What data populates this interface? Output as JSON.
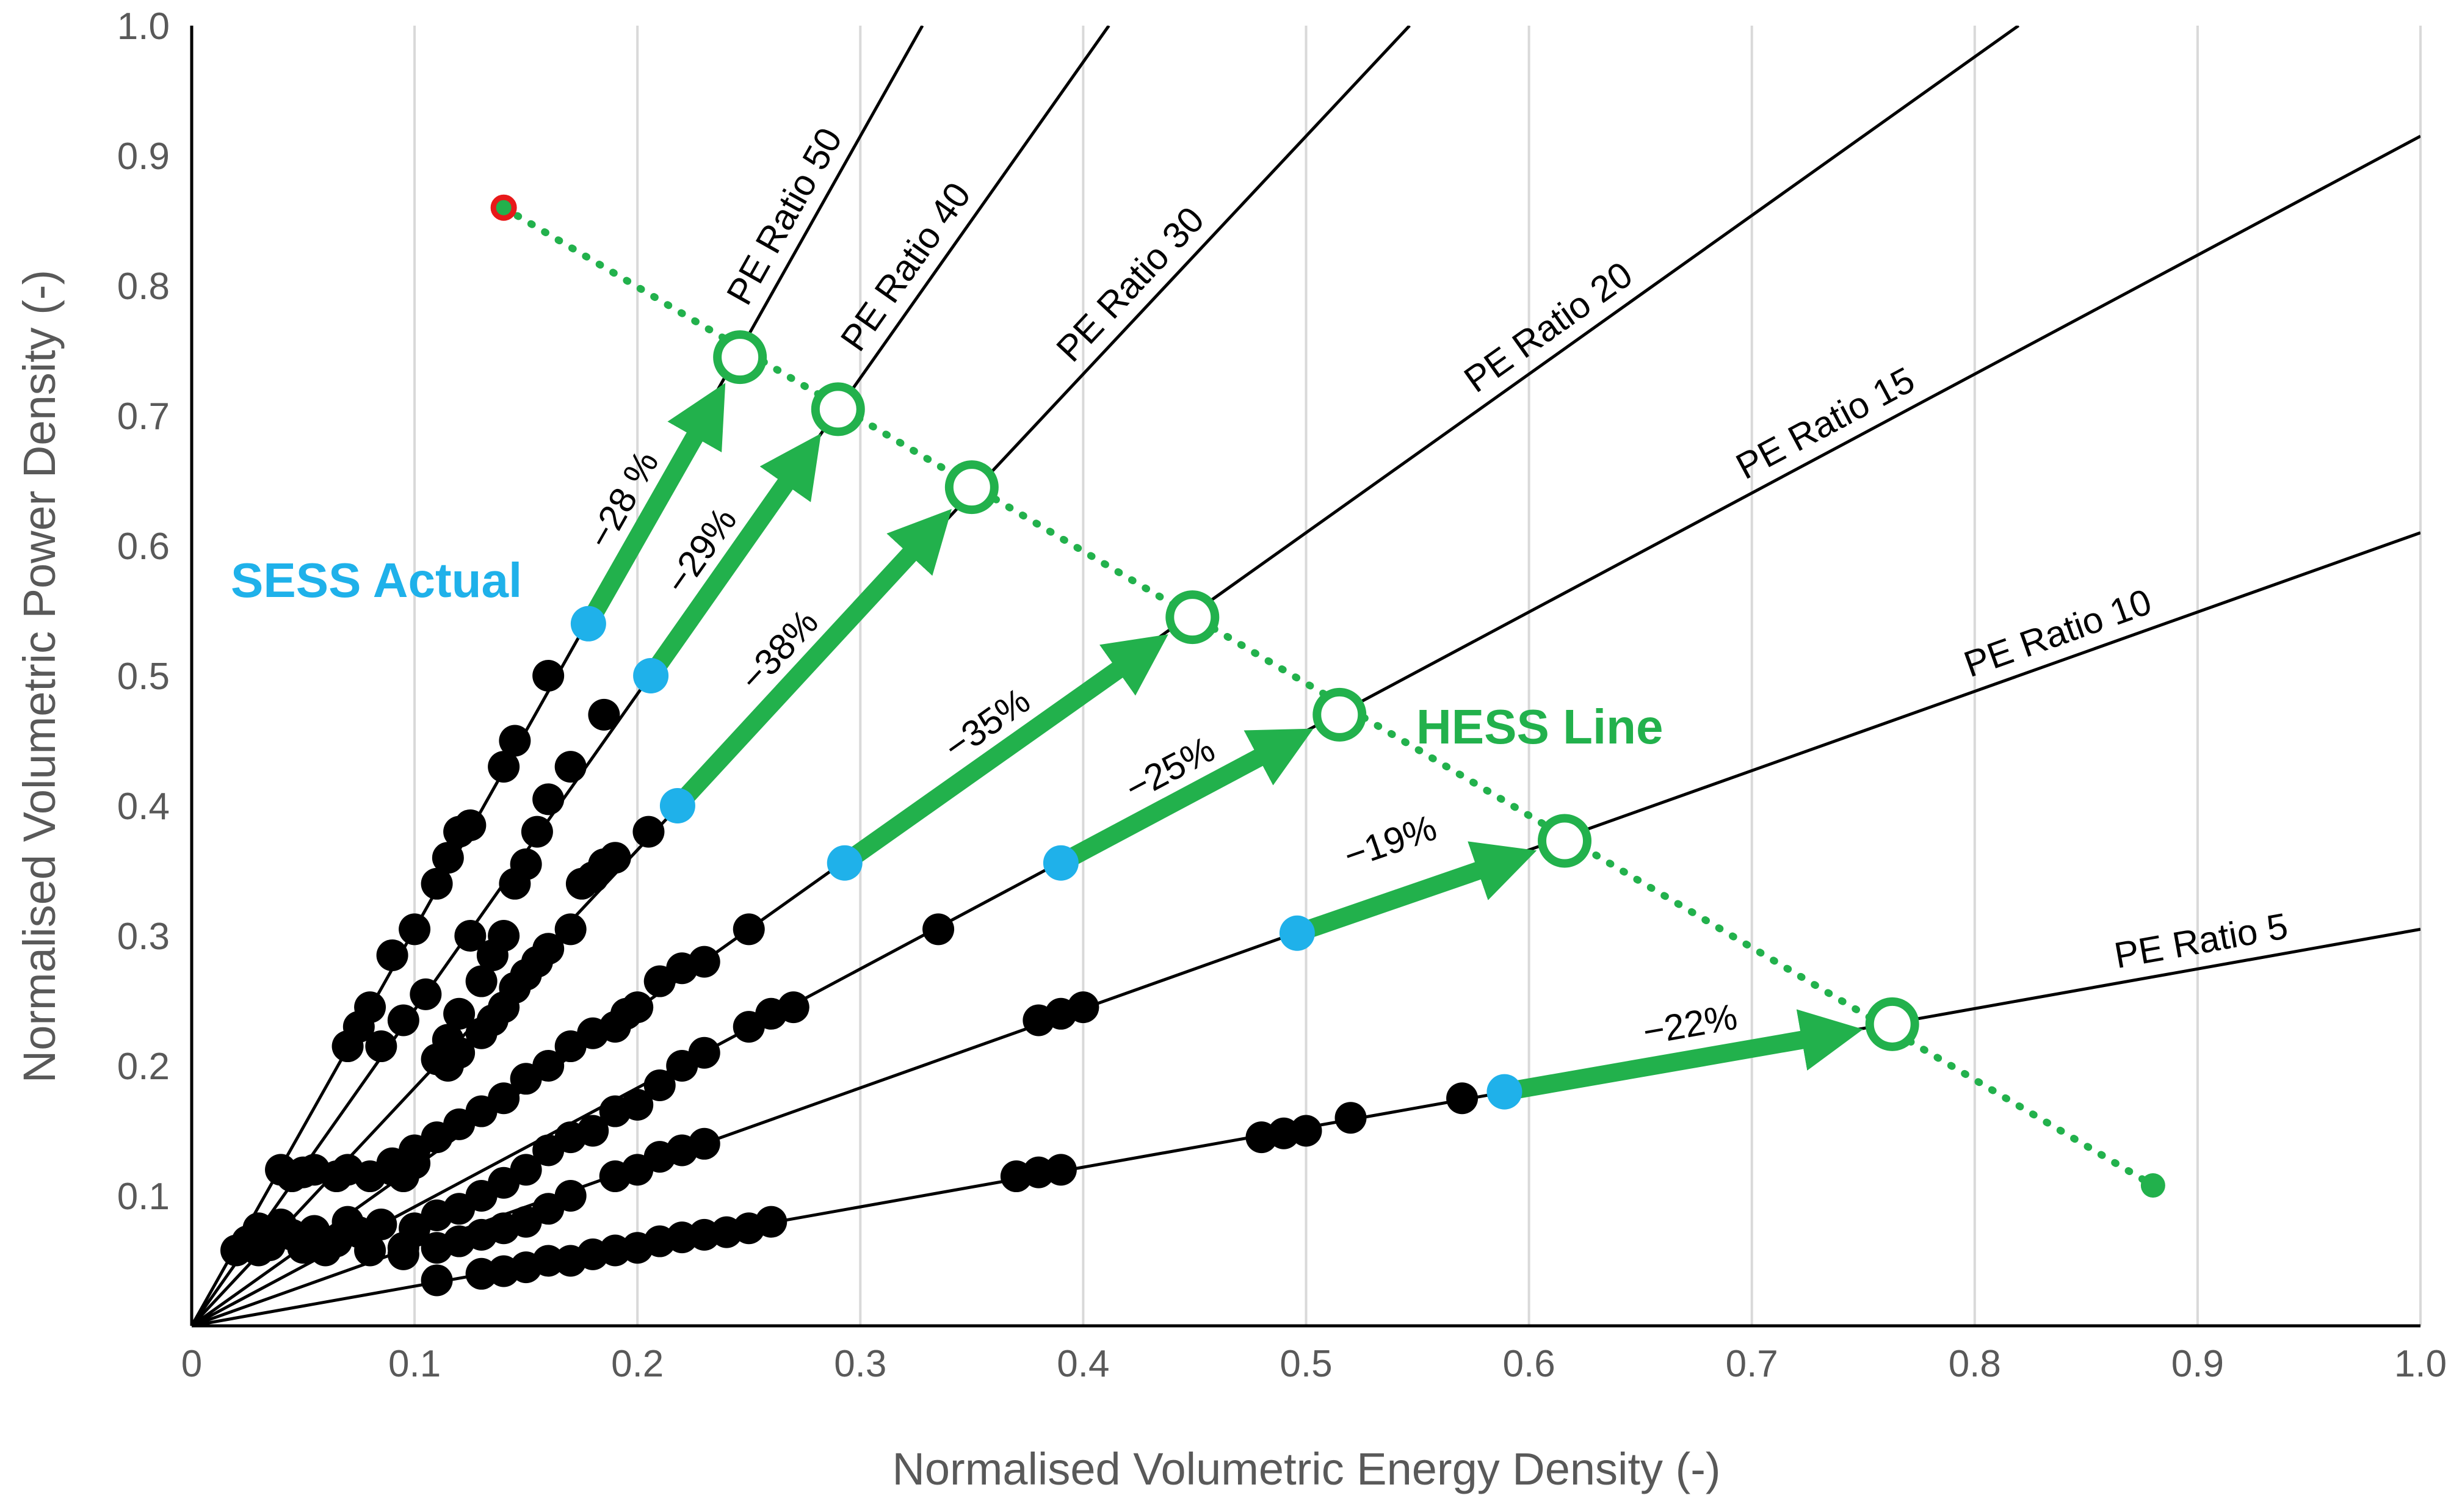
{
  "chart_data": {
    "type": "scatter",
    "xlabel": "Normalised Volumetric Energy Density (-)",
    "ylabel": "Normalised Volumetric Power Density (-)",
    "xlim": [
      0,
      1.0
    ],
    "ylim": [
      0,
      1.0
    ],
    "grid": "vertical",
    "x_ticks": [
      "0",
      "0.1",
      "0.2",
      "0.3",
      "0.4",
      "0.5",
      "0.6",
      "0.7",
      "0.8",
      "0.9",
      "1.0"
    ],
    "y_ticks": [
      "0.1",
      "0.2",
      "0.3",
      "0.4",
      "0.5",
      "0.6",
      "0.7",
      "0.8",
      "0.9",
      "1.0"
    ],
    "pe_ratio_lines": [
      {
        "label": "PE Ratio 50",
        "slope": 3.05,
        "x_end": 0.328
      },
      {
        "label": "PE Ratio 40",
        "slope": 2.43,
        "x_end": 0.412
      },
      {
        "label": "PE Ratio 30",
        "slope": 1.83,
        "x_end": 0.547
      },
      {
        "label": "PE Ratio 20",
        "slope": 1.22,
        "x_end": 0.82
      },
      {
        "label": "PE Ratio 15",
        "slope": 0.915,
        "x_end": 1.0
      },
      {
        "label": "PE Ratio 10",
        "slope": 0.61,
        "x_end": 1.0
      },
      {
        "label": "PE Ratio 5",
        "slope": 0.305,
        "x_end": 1.0
      }
    ],
    "sess_points_black": [
      [
        0.02,
        0.058
      ],
      [
        0.025,
        0.065
      ],
      [
        0.03,
        0.075
      ],
      [
        0.035,
        0.062
      ],
      [
        0.04,
        0.078
      ],
      [
        0.045,
        0.07
      ],
      [
        0.05,
        0.06
      ],
      [
        0.055,
        0.073
      ],
      [
        0.03,
        0.058
      ],
      [
        0.06,
        0.058
      ],
      [
        0.065,
        0.065
      ],
      [
        0.07,
        0.08
      ],
      [
        0.075,
        0.072
      ],
      [
        0.08,
        0.058
      ],
      [
        0.085,
        0.078
      ],
      [
        0.095,
        0.06
      ],
      [
        0.04,
        0.12
      ],
      [
        0.045,
        0.115
      ],
      [
        0.05,
        0.118
      ],
      [
        0.055,
        0.12
      ],
      [
        0.065,
        0.115
      ],
      [
        0.07,
        0.12
      ],
      [
        0.09,
        0.12
      ],
      [
        0.095,
        0.115
      ],
      [
        0.1,
        0.125
      ],
      [
        0.07,
        0.215
      ],
      [
        0.075,
        0.23
      ],
      [
        0.08,
        0.245
      ],
      [
        0.09,
        0.285
      ],
      [
        0.1,
        0.305
      ],
      [
        0.11,
        0.34
      ],
      [
        0.115,
        0.36
      ],
      [
        0.12,
        0.38
      ],
      [
        0.125,
        0.385
      ],
      [
        0.14,
        0.43
      ],
      [
        0.145,
        0.45
      ],
      [
        0.16,
        0.5
      ],
      [
        0.11,
        0.205
      ],
      [
        0.115,
        0.22
      ],
      [
        0.12,
        0.24
      ],
      [
        0.13,
        0.265
      ],
      [
        0.135,
        0.285
      ],
      [
        0.14,
        0.3
      ],
      [
        0.145,
        0.34
      ],
      [
        0.15,
        0.355
      ],
      [
        0.155,
        0.38
      ],
      [
        0.16,
        0.405
      ],
      [
        0.17,
        0.43
      ],
      [
        0.185,
        0.47
      ],
      [
        0.085,
        0.215
      ],
      [
        0.095,
        0.235
      ],
      [
        0.105,
        0.255
      ],
      [
        0.125,
        0.3
      ],
      [
        0.115,
        0.2
      ],
      [
        0.12,
        0.21
      ],
      [
        0.13,
        0.225
      ],
      [
        0.135,
        0.235
      ],
      [
        0.14,
        0.245
      ],
      [
        0.145,
        0.26
      ],
      [
        0.15,
        0.27
      ],
      [
        0.155,
        0.28
      ],
      [
        0.16,
        0.29
      ],
      [
        0.17,
        0.305
      ],
      [
        0.175,
        0.34
      ],
      [
        0.18,
        0.345
      ],
      [
        0.185,
        0.355
      ],
      [
        0.19,
        0.36
      ],
      [
        0.205,
        0.38
      ],
      [
        0.08,
        0.115
      ],
      [
        0.09,
        0.125
      ],
      [
        0.1,
        0.135
      ],
      [
        0.11,
        0.145
      ],
      [
        0.12,
        0.155
      ],
      [
        0.13,
        0.165
      ],
      [
        0.14,
        0.175
      ],
      [
        0.15,
        0.19
      ],
      [
        0.16,
        0.2
      ],
      [
        0.17,
        0.215
      ],
      [
        0.18,
        0.225
      ],
      [
        0.19,
        0.23
      ],
      [
        0.195,
        0.24
      ],
      [
        0.2,
        0.245
      ],
      [
        0.21,
        0.265
      ],
      [
        0.22,
        0.275
      ],
      [
        0.23,
        0.28
      ],
      [
        0.25,
        0.305
      ],
      [
        0.1,
        0.075
      ],
      [
        0.11,
        0.085
      ],
      [
        0.12,
        0.09
      ],
      [
        0.13,
        0.1
      ],
      [
        0.14,
        0.11
      ],
      [
        0.15,
        0.12
      ],
      [
        0.16,
        0.135
      ],
      [
        0.17,
        0.145
      ],
      [
        0.18,
        0.15
      ],
      [
        0.19,
        0.165
      ],
      [
        0.2,
        0.17
      ],
      [
        0.21,
        0.185
      ],
      [
        0.22,
        0.2
      ],
      [
        0.23,
        0.21
      ],
      [
        0.25,
        0.23
      ],
      [
        0.26,
        0.24
      ],
      [
        0.27,
        0.245
      ],
      [
        0.335,
        0.305
      ],
      [
        0.095,
        0.055
      ],
      [
        0.11,
        0.06
      ],
      [
        0.12,
        0.065
      ],
      [
        0.13,
        0.07
      ],
      [
        0.14,
        0.075
      ],
      [
        0.15,
        0.08
      ],
      [
        0.16,
        0.09
      ],
      [
        0.17,
        0.1
      ],
      [
        0.19,
        0.115
      ],
      [
        0.2,
        0.12
      ],
      [
        0.21,
        0.13
      ],
      [
        0.22,
        0.135
      ],
      [
        0.23,
        0.14
      ],
      [
        0.38,
        0.235
      ],
      [
        0.39,
        0.24
      ],
      [
        0.4,
        0.245
      ],
      [
        0.11,
        0.035
      ],
      [
        0.13,
        0.04
      ],
      [
        0.14,
        0.042
      ],
      [
        0.15,
        0.045
      ],
      [
        0.16,
        0.05
      ],
      [
        0.17,
        0.05
      ],
      [
        0.18,
        0.055
      ],
      [
        0.19,
        0.058
      ],
      [
        0.2,
        0.06
      ],
      [
        0.21,
        0.065
      ],
      [
        0.22,
        0.068
      ],
      [
        0.23,
        0.07
      ],
      [
        0.24,
        0.072
      ],
      [
        0.25,
        0.075
      ],
      [
        0.26,
        0.08
      ],
      [
        0.37,
        0.115
      ],
      [
        0.38,
        0.118
      ],
      [
        0.39,
        0.12
      ],
      [
        0.48,
        0.145
      ],
      [
        0.49,
        0.148
      ],
      [
        0.5,
        0.15
      ],
      [
        0.52,
        0.16
      ],
      [
        0.57,
        0.175
      ]
    ],
    "sess_actual": [
      [
        0.178,
        0.54
      ],
      [
        0.206,
        0.5
      ],
      [
        0.218,
        0.4
      ],
      [
        0.293,
        0.356
      ],
      [
        0.39,
        0.356
      ],
      [
        0.496,
        0.302
      ],
      [
        0.589,
        0.18
      ]
    ],
    "hess_points": [
      [
        0.246,
        0.745
      ],
      [
        0.29,
        0.705
      ],
      [
        0.35,
        0.645
      ],
      [
        0.449,
        0.545
      ],
      [
        0.515,
        0.47
      ],
      [
        0.616,
        0.373
      ],
      [
        0.763,
        0.232
      ]
    ],
    "hess_line": {
      "start": [
        0.14,
        0.86
      ],
      "end": [
        0.88,
        0.108
      ]
    },
    "arrows": [
      {
        "from": [
          0.178,
          0.54
        ],
        "to": [
          0.246,
          0.745
        ],
        "label": "−28 %"
      },
      {
        "from": [
          0.206,
          0.5
        ],
        "to": [
          0.29,
          0.705
        ],
        "label": "−29%"
      },
      {
        "from": [
          0.218,
          0.4
        ],
        "to": [
          0.35,
          0.645
        ],
        "label": "−38%"
      },
      {
        "from": [
          0.293,
          0.356
        ],
        "to": [
          0.449,
          0.545
        ],
        "label": "−35%"
      },
      {
        "from": [
          0.39,
          0.356
        ],
        "to": [
          0.515,
          0.47
        ],
        "label": "−25%"
      },
      {
        "from": [
          0.496,
          0.302
        ],
        "to": [
          0.616,
          0.373
        ],
        "label": "−19%"
      },
      {
        "from": [
          0.589,
          0.18
        ],
        "to": [
          0.763,
          0.232
        ],
        "label": "−22%"
      }
    ],
    "annotations": {
      "sess": "SESS Actual",
      "hess": "HESS Line"
    },
    "colors": {
      "sess": "#1fb1ea",
      "hess": "#22b14c",
      "start_point": "#e8191a",
      "points": "#000000",
      "grid": "#d9d9d9"
    }
  }
}
